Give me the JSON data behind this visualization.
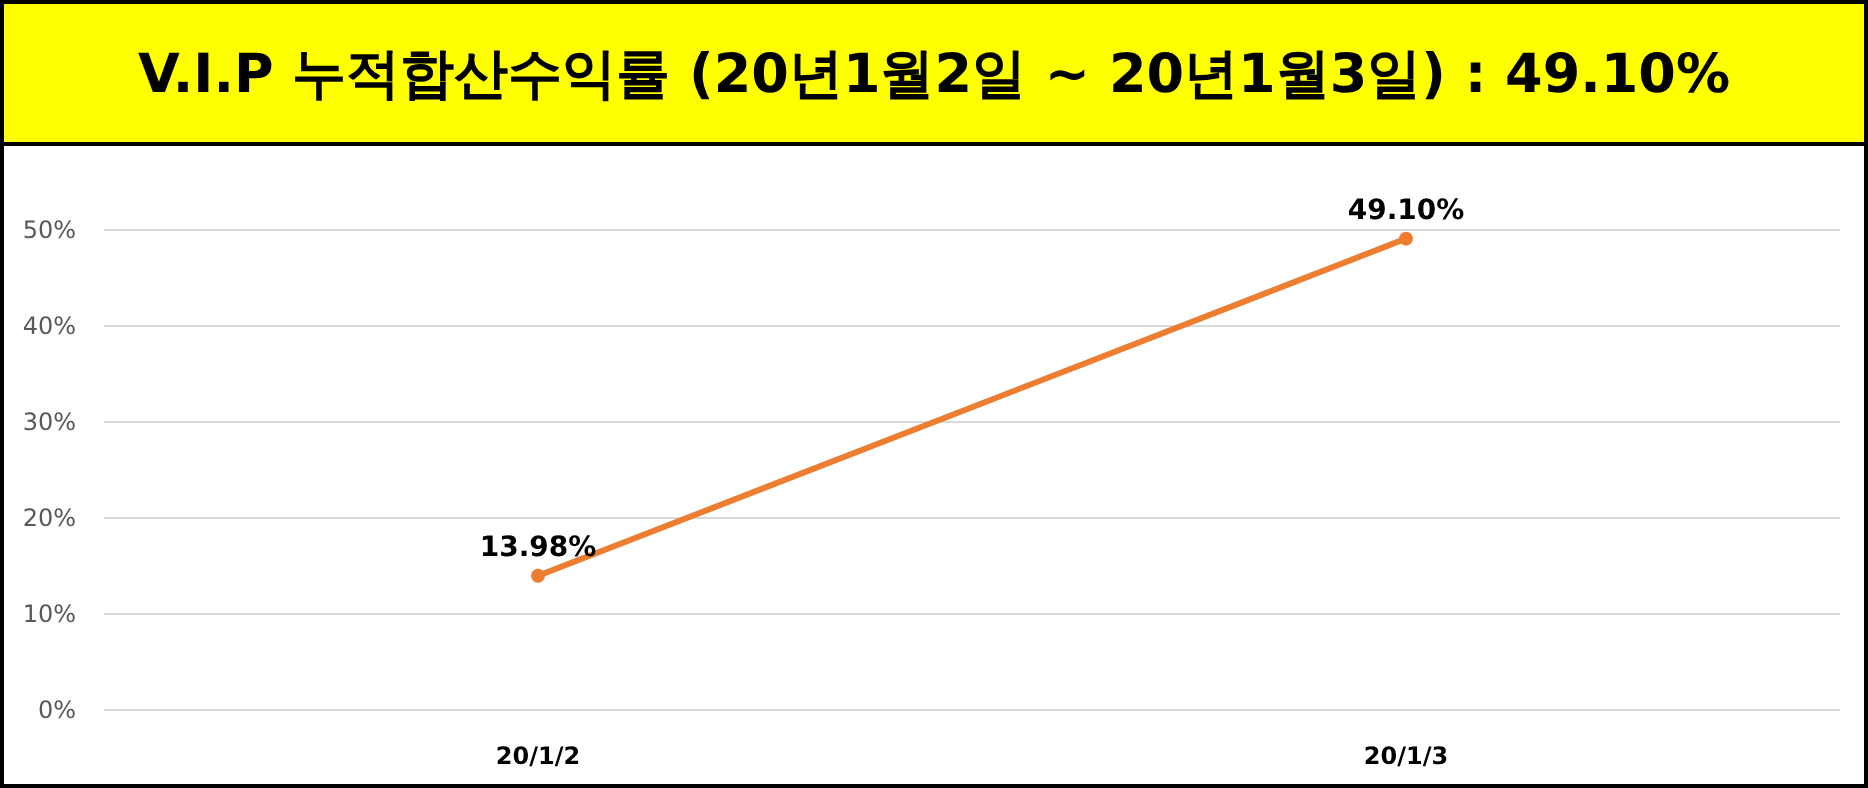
{
  "chart_data": {
    "type": "line",
    "title": "V.I.P 누적합산수익률 (20년1월2일 ~ 20년1월3일) : 49.10%",
    "categories": [
      "20/1/2",
      "20/1/3"
    ],
    "series": [
      {
        "color": "#ed7d31",
        "values": [
          13.98,
          49.1
        ],
        "value_labels": [
          "13.98%",
          "49.10%"
        ]
      }
    ],
    "ylim": [
      0,
      50
    ],
    "yticks": [
      {
        "value": 0,
        "label": "0%"
      },
      {
        "value": 10,
        "label": "10%"
      },
      {
        "value": 20,
        "label": "20%"
      },
      {
        "value": 30,
        "label": "30%"
      },
      {
        "value": 40,
        "label": "40%"
      },
      {
        "value": 50,
        "label": "50%"
      }
    ],
    "grid": "y",
    "marker": "circle",
    "line_style": "solid"
  }
}
